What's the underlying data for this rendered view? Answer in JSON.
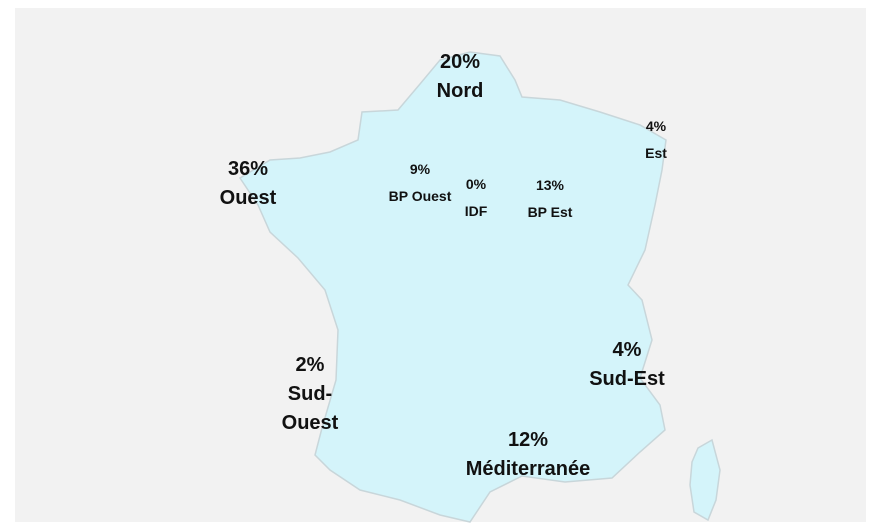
{
  "regions": [
    {
      "share": "20%",
      "name": "Nord"
    },
    {
      "share": "4%",
      "name": "Est"
    },
    {
      "share": "36%",
      "name": "Ouest"
    },
    {
      "share": "9%",
      "name": "BP Ouest"
    },
    {
      "share": "0%",
      "name": "IDF"
    },
    {
      "share": "13%",
      "name": "BP Est"
    },
    {
      "share": "4%",
      "name": "Sud-Est"
    },
    {
      "share": "2%",
      "name": "Sud-Ouest"
    },
    {
      "share": "12%",
      "name": "Méditerranée"
    }
  ]
}
